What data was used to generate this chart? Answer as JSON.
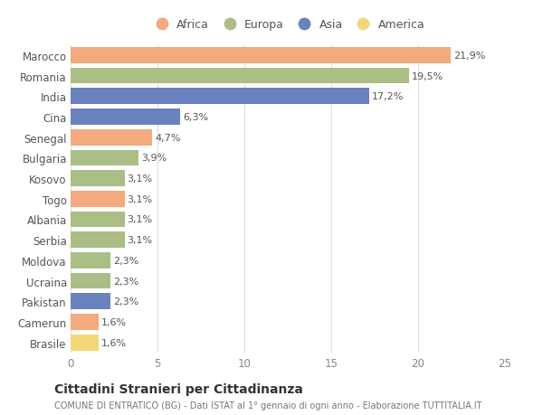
{
  "categories": [
    "Marocco",
    "Romania",
    "India",
    "Cina",
    "Senegal",
    "Bulgaria",
    "Kosovo",
    "Togo",
    "Albania",
    "Serbia",
    "Moldova",
    "Ucraina",
    "Pakistan",
    "Camerun",
    "Brasile"
  ],
  "values": [
    21.9,
    19.5,
    17.2,
    6.3,
    4.7,
    3.9,
    3.1,
    3.1,
    3.1,
    3.1,
    2.3,
    2.3,
    2.3,
    1.6,
    1.6
  ],
  "labels": [
    "21,9%",
    "19,5%",
    "17,2%",
    "6,3%",
    "4,7%",
    "3,9%",
    "3,1%",
    "3,1%",
    "3,1%",
    "3,1%",
    "2,3%",
    "2,3%",
    "2,3%",
    "1,6%",
    "1,6%"
  ],
  "continents": [
    "Africa",
    "Europa",
    "Asia",
    "Asia",
    "Africa",
    "Europa",
    "Europa",
    "Africa",
    "Europa",
    "Europa",
    "Europa",
    "Europa",
    "Asia",
    "Africa",
    "America"
  ],
  "continent_colors": {
    "Africa": "#F2AA7E",
    "Europa": "#ABBE85",
    "Asia": "#6B82C0",
    "America": "#F2D878"
  },
  "legend_order": [
    "Africa",
    "Europa",
    "Asia",
    "America"
  ],
  "xlim": [
    0,
    25
  ],
  "xticks": [
    0,
    5,
    10,
    15,
    20,
    25
  ],
  "title": "Cittadini Stranieri per Cittadinanza",
  "subtitle": "COMUNE DI ENTRATICO (BG) - Dati ISTAT al 1° gennaio di ogni anno - Elaborazione TUTTITALIA.IT",
  "background_color": "#ffffff",
  "grid_color": "#dddddd",
  "bar_height": 0.78
}
